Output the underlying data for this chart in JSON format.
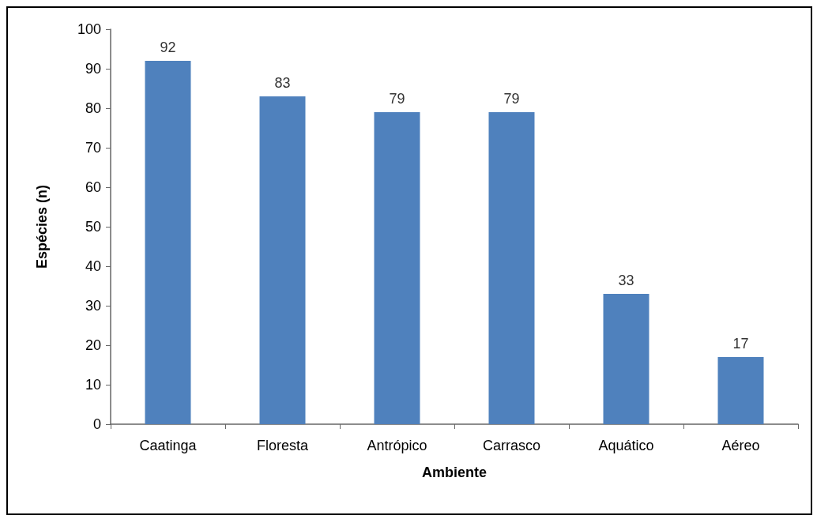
{
  "chart_data": {
    "type": "bar",
    "categories": [
      "Caatinga",
      "Floresta",
      "Antrópico",
      "Carrasco",
      "Aquático",
      "Aéreo"
    ],
    "values": [
      92,
      83,
      79,
      79,
      33,
      17
    ],
    "color": "#4f81bd",
    "xlabel": "Ambiente",
    "ylabel": "Espécies (n)",
    "ylim": [
      0,
      100
    ],
    "yticks": [
      0,
      10,
      20,
      30,
      40,
      50,
      60,
      70,
      80,
      90,
      100
    ],
    "data_labels": true
  }
}
